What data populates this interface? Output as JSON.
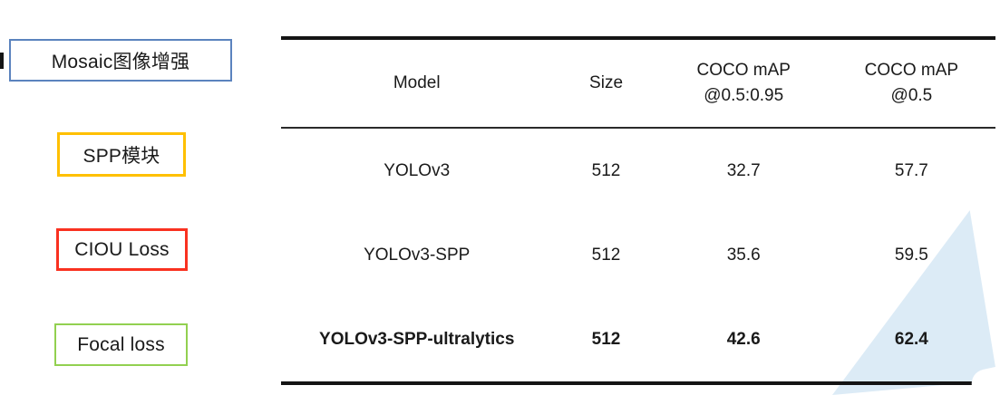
{
  "slide": {
    "left_labels": [
      {
        "text": "Mosaic图像增强",
        "border_color": "#5b83be"
      },
      {
        "text": "SPP模块",
        "border_color": "#ffc000"
      },
      {
        "text": "CIOU Loss",
        "border_color": "#f93120"
      },
      {
        "text": "Focal loss",
        "border_color": "#92d050"
      }
    ],
    "table": {
      "headers": [
        {
          "line1": "Model",
          "line2": ""
        },
        {
          "line1": "Size",
          "line2": ""
        },
        {
          "line1": "COCO mAP",
          "line2": "@0.5:0.95"
        },
        {
          "line1": "COCO mAP",
          "line2": "@0.5"
        }
      ],
      "rows": [
        {
          "model": "YOLOv3",
          "size": "512",
          "map_05_095": "32.7",
          "map_05": "57.7"
        },
        {
          "model": "YOLOv3-SPP",
          "size": "512",
          "map_05_095": "35.6",
          "map_05": "59.5"
        },
        {
          "model": "YOLOv3-SPP-ultralytics",
          "size": "512",
          "map_05_095": "42.6",
          "map_05": "62.4"
        }
      ]
    },
    "decor": {
      "triangle_color": "#dcebf6"
    }
  }
}
